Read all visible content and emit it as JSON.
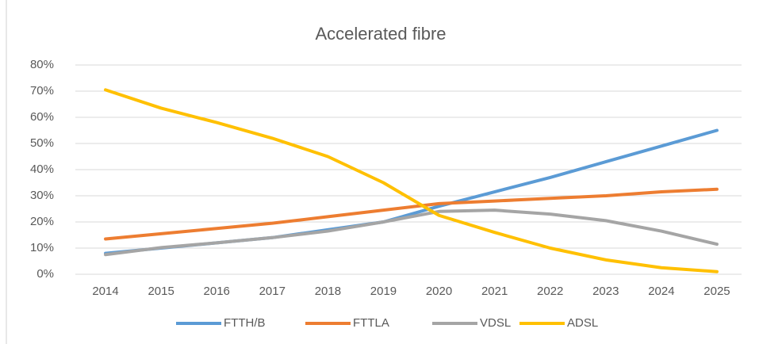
{
  "chart_data": {
    "type": "line",
    "title": "Accelerated fibre",
    "categories": [
      "2014",
      "2015",
      "2016",
      "2017",
      "2018",
      "2019",
      "2020",
      "2021",
      "2022",
      "2023",
      "2024",
      "2025"
    ],
    "series": [
      {
        "name": "FTTH/B",
        "color": "#5b9bd5",
        "values": [
          8,
          10,
          12,
          14,
          17,
          20,
          26,
          31.5,
          37,
          43,
          49,
          55
        ]
      },
      {
        "name": "FTTLA",
        "color": "#ed7d31",
        "values": [
          13.5,
          15.5,
          17.5,
          19.5,
          22,
          24.5,
          27,
          28,
          29,
          30,
          31.5,
          32.5
        ]
      },
      {
        "name": "VDSL",
        "color": "#a5a5a5",
        "values": [
          7.5,
          10.2,
          12,
          14,
          16.5,
          20,
          24,
          24.5,
          23,
          20.5,
          16.5,
          11.5
        ]
      },
      {
        "name": "ADSL",
        "color": "#ffc000",
        "values": [
          70.5,
          63.5,
          58,
          52,
          45,
          35,
          22.5,
          16,
          10,
          5.5,
          2.5,
          1
        ]
      }
    ],
    "ylim": [
      0,
      80
    ],
    "yticks": [
      {
        "value": 0,
        "label": "0%"
      },
      {
        "value": 10,
        "label": "10%"
      },
      {
        "value": 20,
        "label": "20%"
      },
      {
        "value": 30,
        "label": "30%"
      },
      {
        "value": 40,
        "label": "40%"
      },
      {
        "value": 50,
        "label": "50%"
      },
      {
        "value": 60,
        "label": "60%"
      },
      {
        "value": 70,
        "label": "70%"
      },
      {
        "value": 80,
        "label": "80%"
      }
    ],
    "grid": true,
    "legend": "bottom"
  }
}
